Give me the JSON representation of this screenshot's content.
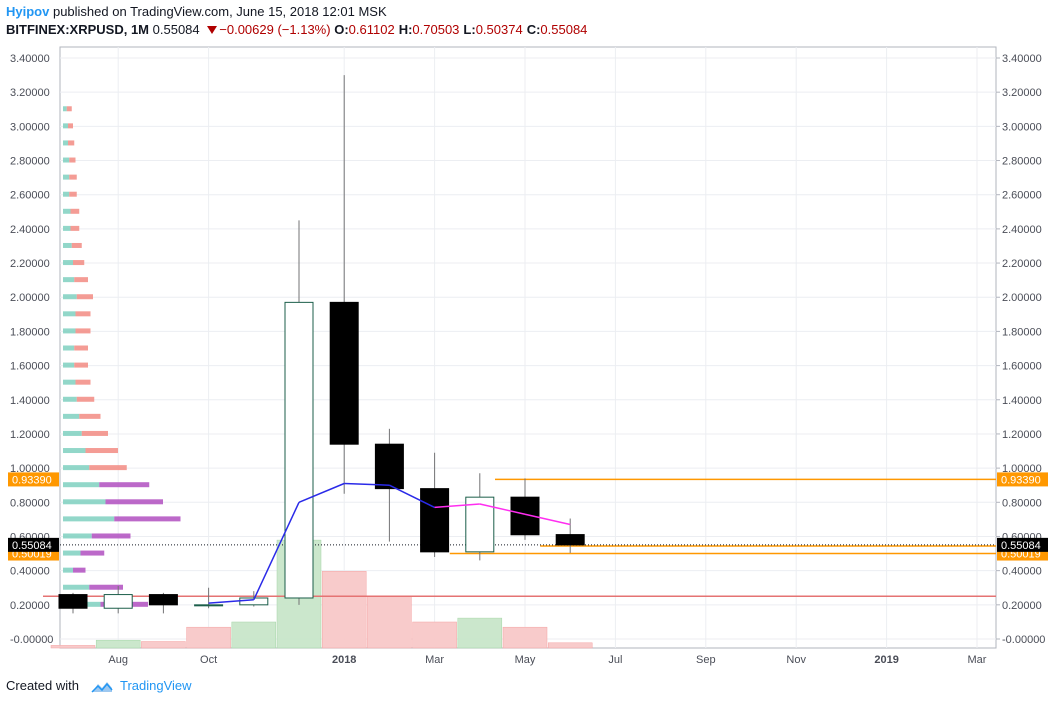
{
  "header": {
    "author": "Hyipov",
    "published": "published on TradingView.com, June 15, 2018 12:01 MSK",
    "symbol": "BITFINEX:XRPUSD, 1M",
    "last": "0.55084",
    "change": "−0.00629 (−1.13%)",
    "o_label": "O:",
    "o_value": "0.61102",
    "h_label": "H:",
    "h_value": "0.70503",
    "l_label": "L:",
    "l_value": "0.50374",
    "c_label": "C:",
    "c_value": "0.55084"
  },
  "footer": {
    "created_with": "Created with",
    "brand": "TradingView"
  },
  "colors": {
    "down": "#b00000",
    "orange": "#ff9800",
    "brand": "#2196f3",
    "volume_up": "#c8e6c9",
    "volume_down": "#f8c8c8",
    "ma_low": "#2a2ae8",
    "ma_high": "#ff2ef0",
    "grid": "#eceef2"
  },
  "chart_data": {
    "type": "candlestick",
    "ylim": [
      -0.05,
      3.45
    ],
    "y_ticks": [
      "-0.00000",
      "0.20000",
      "0.40000",
      "0.60000",
      "0.80000",
      "1.00000",
      "1.20000",
      "1.40000",
      "1.60000",
      "1.80000",
      "2.00000",
      "2.20000",
      "2.40000",
      "2.60000",
      "2.80000",
      "3.00000",
      "3.20000",
      "3.40000"
    ],
    "x_ticks": [
      "Aug",
      "Oct",
      "2018",
      "Mar",
      "May",
      "Jul",
      "Sep",
      "Nov",
      "2019",
      "Mar"
    ],
    "candles": [
      {
        "month": "2017-07",
        "open": 0.26,
        "high": 0.27,
        "low": 0.15,
        "close": 0.18
      },
      {
        "month": "2017-08",
        "open": 0.18,
        "high": 0.31,
        "low": 0.15,
        "close": 0.26
      },
      {
        "month": "2017-09",
        "open": 0.26,
        "high": 0.27,
        "low": 0.15,
        "close": 0.2
      },
      {
        "month": "2017-10",
        "open": 0.2,
        "high": 0.3,
        "low": 0.18,
        "close": 0.2
      },
      {
        "month": "2017-11",
        "open": 0.2,
        "high": 0.28,
        "low": 0.19,
        "close": 0.24
      },
      {
        "month": "2017-12",
        "open": 0.24,
        "high": 2.45,
        "low": 0.2,
        "close": 1.97
      },
      {
        "month": "2018-01",
        "open": 1.97,
        "high": 3.3,
        "low": 0.85,
        "close": 1.14
      },
      {
        "month": "2018-02",
        "open": 1.14,
        "high": 1.23,
        "low": 0.57,
        "close": 0.88
      },
      {
        "month": "2018-03",
        "open": 0.88,
        "high": 1.09,
        "low": 0.48,
        "close": 0.51
      },
      {
        "month": "2018-04",
        "open": 0.51,
        "high": 0.97,
        "low": 0.46,
        "close": 0.83
      },
      {
        "month": "2018-05",
        "open": 0.83,
        "high": 0.94,
        "low": 0.58,
        "close": 0.61
      },
      {
        "month": "2018-06",
        "open": 0.61102,
        "high": 0.70503,
        "low": 0.50374,
        "close": 0.55084
      }
    ],
    "moving_average": [
      {
        "month": "2017-10",
        "value": 0.21
      },
      {
        "month": "2017-11",
        "value": 0.23
      },
      {
        "month": "2017-12",
        "value": 0.8
      },
      {
        "month": "2018-01",
        "value": 0.91
      },
      {
        "month": "2018-02",
        "value": 0.9
      },
      {
        "month": "2018-03",
        "value": 0.77
      },
      {
        "month": "2018-04",
        "value": 0.79
      },
      {
        "month": "2018-05",
        "value": 0.73
      },
      {
        "month": "2018-06",
        "value": 0.67
      }
    ],
    "volume_relative": [
      {
        "month": "2017-07",
        "value": 0.02,
        "dir": "down"
      },
      {
        "month": "2017-08",
        "value": 0.06,
        "dir": "up"
      },
      {
        "month": "2017-09",
        "value": 0.05,
        "dir": "down"
      },
      {
        "month": "2017-10",
        "value": 0.16,
        "dir": "down"
      },
      {
        "month": "2017-11",
        "value": 0.2,
        "dir": "up"
      },
      {
        "month": "2017-12",
        "value": 0.83,
        "dir": "up"
      },
      {
        "month": "2018-01",
        "value": 0.59,
        "dir": "down"
      },
      {
        "month": "2018-02",
        "value": 0.4,
        "dir": "down"
      },
      {
        "month": "2018-03",
        "value": 0.2,
        "dir": "down"
      },
      {
        "month": "2018-04",
        "value": 0.23,
        "dir": "up"
      },
      {
        "month": "2018-05",
        "value": 0.16,
        "dir": "down"
      },
      {
        "month": "2018-06",
        "value": 0.04,
        "dir": "down"
      }
    ],
    "horizontal_lines": [
      {
        "value": 0.9339,
        "label": "0.93390",
        "color": "#ff9800",
        "from": "2018-05"
      },
      {
        "value": 0.54403,
        "label": "0.54403",
        "color": "#ff9800",
        "from": "2018-06"
      },
      {
        "value": 0.50019,
        "label": "0.50019",
        "color": "#ff9800",
        "from": "2018-04"
      },
      {
        "value": 0.25,
        "color": "#e57373",
        "from": "2017-07"
      }
    ],
    "last_price": {
      "value": 0.55084,
      "label": "0.55084"
    },
    "volume_profile": [
      {
        "price": 3.1,
        "up": 0.003,
        "down": 0.004
      },
      {
        "price": 3.0,
        "up": 0.004,
        "down": 0.004
      },
      {
        "price": 2.9,
        "up": 0.004,
        "down": 0.005
      },
      {
        "price": 2.8,
        "up": 0.005,
        "down": 0.005
      },
      {
        "price": 2.7,
        "up": 0.005,
        "down": 0.006
      },
      {
        "price": 2.6,
        "up": 0.005,
        "down": 0.006
      },
      {
        "price": 2.5,
        "up": 0.006,
        "down": 0.007
      },
      {
        "price": 2.4,
        "up": 0.006,
        "down": 0.007
      },
      {
        "price": 2.3,
        "up": 0.007,
        "down": 0.008
      },
      {
        "price": 2.2,
        "up": 0.008,
        "down": 0.009
      },
      {
        "price": 2.1,
        "up": 0.009,
        "down": 0.011
      },
      {
        "price": 2.0,
        "up": 0.011,
        "down": 0.013
      },
      {
        "price": 1.9,
        "up": 0.01,
        "down": 0.012
      },
      {
        "price": 1.8,
        "up": 0.01,
        "down": 0.012
      },
      {
        "price": 1.7,
        "up": 0.009,
        "down": 0.011
      },
      {
        "price": 1.6,
        "up": 0.009,
        "down": 0.011
      },
      {
        "price": 1.5,
        "up": 0.01,
        "down": 0.012
      },
      {
        "price": 1.4,
        "up": 0.011,
        "down": 0.014
      },
      {
        "price": 1.3,
        "up": 0.013,
        "down": 0.017
      },
      {
        "price": 1.2,
        "up": 0.015,
        "down": 0.021
      },
      {
        "price": 1.1,
        "up": 0.018,
        "down": 0.026
      },
      {
        "price": 1.0,
        "up": 0.021,
        "down": 0.03
      },
      {
        "price": 0.9,
        "up": 0.029,
        "down": 0.04
      },
      {
        "price": 0.8,
        "up": 0.034,
        "down": 0.046
      },
      {
        "price": 0.7,
        "up": 0.041,
        "down": 0.053
      },
      {
        "price": 0.6,
        "up": 0.023,
        "down": 0.031
      },
      {
        "price": 0.5,
        "up": 0.014,
        "down": 0.019
      },
      {
        "price": 0.4,
        "up": 0.008,
        "down": 0.01
      },
      {
        "price": 0.3,
        "up": 0.021,
        "down": 0.027
      },
      {
        "price": 0.2,
        "up": 0.03,
        "down": 0.038
      }
    ]
  }
}
